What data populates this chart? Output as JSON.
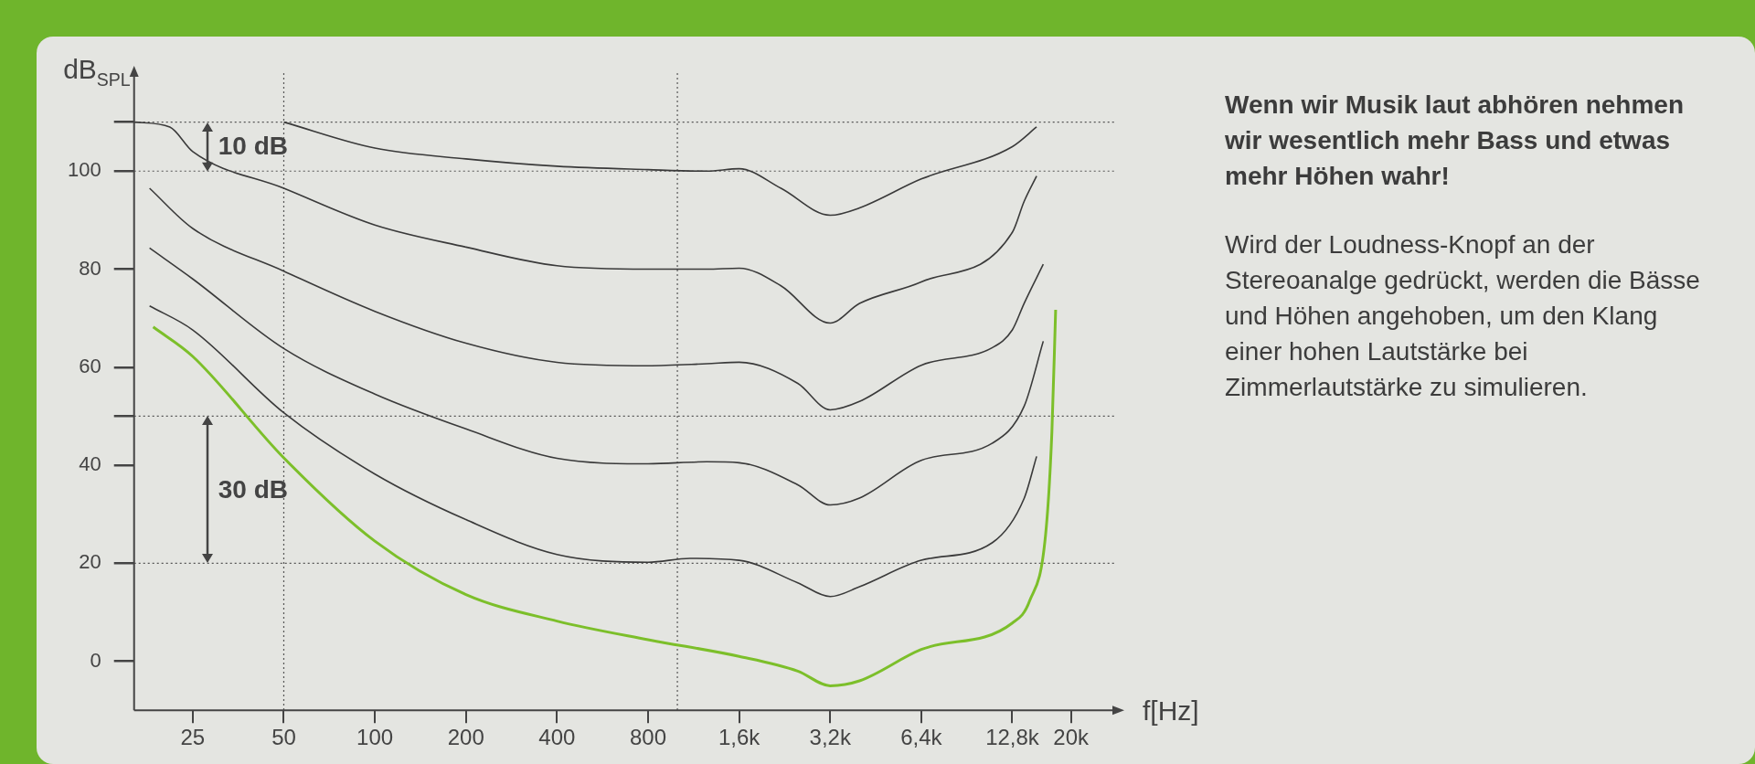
{
  "chart_data": {
    "type": "line",
    "ylabel": "dB$_{SPL}$",
    "xlabel": "f[Hz]",
    "log": "x",
    "grid": false,
    "legend": false,
    "marker": "none",
    "line_style": "solid",
    "xlim": [
      16,
      28000
    ],
    "xticks": [
      25,
      50,
      100,
      200,
      400,
      800,
      {
        "value": 1600,
        "label": "1,6k"
      },
      {
        "value": 3200,
        "label": "3,2k"
      },
      {
        "value": 6400,
        "label": "6,4k"
      },
      {
        "value": 12800,
        "label": "12,8k"
      },
      {
        "value": 20000,
        "label": "20k"
      }
    ],
    "ylim": [
      -10,
      120
    ],
    "yticks": [
      0,
      20,
      40,
      {
        "value": 50,
        "label": null
      },
      60,
      80,
      100,
      {
        "value": 110,
        "label": null
      }
    ],
    "series": [
      {
        "color": "#3a3a3a",
        "x": [
          50,
          100,
          200,
          400,
          800,
          1250,
          1600,
          2200,
          3200,
          4000,
          6400,
          12800,
          15400
        ],
        "values": [
          110,
          104.7,
          102.5,
          101,
          100.3,
          100,
          100.5,
          96.5,
          91,
          92.5,
          98.4,
          105,
          109
        ]
      },
      {
        "color": "#3a3a3a",
        "x": [
          16,
          21,
          25,
          50,
          100,
          200,
          400,
          800,
          1250,
          1600,
          2200,
          3200,
          4000,
          6400,
          12800,
          14000,
          15400
        ],
        "values": [
          110,
          109,
          104,
          96.5,
          89,
          84.5,
          80.7,
          80,
          80,
          80.2,
          76.6,
          69,
          73,
          77.4,
          87.5,
          93.8,
          99
        ]
      },
      {
        "color": "#3a3a3a",
        "x": [
          18,
          25,
          50,
          100,
          200,
          400,
          800,
          1250,
          1600,
          2500,
          3200,
          4000,
          6400,
          11000,
          12800,
          14000,
          16200
        ],
        "values": [
          96.5,
          88.3,
          79.6,
          71.4,
          64.9,
          61,
          60.3,
          60.7,
          61,
          56.7,
          51.3,
          53,
          60.4,
          64,
          67.6,
          73,
          81
        ]
      },
      {
        "color": "#3a3a3a",
        "x": [
          18,
          25,
          50,
          100,
          200,
          400,
          800,
          1250,
          1600,
          2500,
          3200,
          4000,
          6400,
          11000,
          14000,
          16200
        ],
        "values": [
          84.3,
          78,
          63.8,
          54.5,
          47.4,
          41.4,
          40.3,
          40.7,
          40.5,
          36,
          31.9,
          33.3,
          41,
          44.5,
          52,
          65.3
        ]
      },
      {
        "color": "#3a3a3a",
        "x": [
          18,
          25,
          50,
          100,
          200,
          400,
          800,
          1100,
          1600,
          2500,
          3200,
          4000,
          6400,
          11000,
          14000,
          15400
        ],
        "values": [
          72.5,
          67.6,
          50.7,
          38.2,
          28.9,
          21.8,
          20.2,
          21,
          20.6,
          16,
          13.2,
          15.2,
          20.6,
          24.2,
          33.2,
          41.8
        ]
      },
      {
        "color": "#7cbf2a",
        "x": [
          18.5,
          25,
          50,
          100,
          200,
          400,
          800,
          1600,
          2500,
          3200,
          4000,
          6400,
          12800,
          14600,
          16500,
          17300,
          17800
        ],
        "values": [
          68.2,
          62.2,
          41.5,
          24.5,
          13.6,
          8.2,
          4.4,
          1,
          -2,
          -5,
          -4,
          2.4,
          7.8,
          12.3,
          26,
          46.8,
          71.7
        ]
      }
    ],
    "ref_lines": [
      {
        "axis": "y",
        "value": 110,
        "color": "#555555",
        "line_style": "dotted"
      },
      {
        "axis": "y",
        "value": 100,
        "color": "#555555",
        "line_style": "dotted"
      },
      {
        "axis": "y",
        "value": 50,
        "color": "#555555",
        "line_style": "dotted"
      },
      {
        "axis": "y",
        "value": 20,
        "color": "#555555",
        "line_style": "dotted"
      },
      {
        "axis": "x",
        "value": 50,
        "color": "#555555",
        "line_style": "dotted"
      },
      {
        "axis": "x",
        "value": 1000,
        "color": "#555555",
        "line_style": "dotted"
      }
    ],
    "annotations": [
      "10 dB",
      "30 dB",
      "Wenn wir Musik laut abhören nehmen wir wesentlich mehr Bass und etwas mehr Höhen wahr!",
      "Wird der Loudness-Knopf an der Stereoanalge gedrückt, werden die Bässe und Höhen angehoben, um den Klang einer hohen Lautstärke bei Zimmerlautstärke zu simulieren."
    ]
  }
}
